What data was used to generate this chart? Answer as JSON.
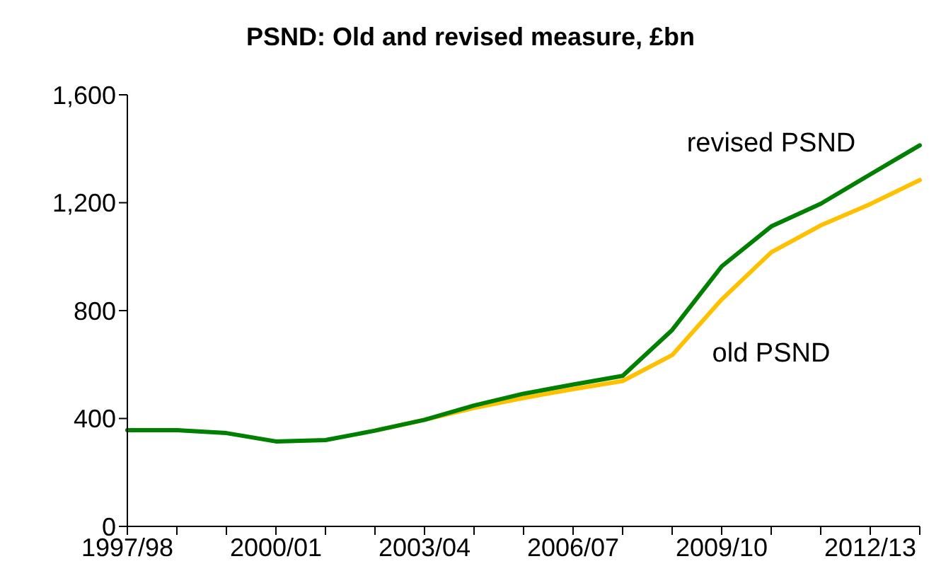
{
  "chart_data": {
    "type": "line",
    "title": "PSND: Old and revised measure, £bn",
    "categories": [
      "1997/98",
      null,
      null,
      "2000/01",
      null,
      null,
      "2003/04",
      null,
      null,
      "2006/07",
      null,
      null,
      "2009/10",
      null,
      null,
      "2012/13",
      null
    ],
    "series": [
      {
        "name": "revised PSND",
        "color": "#008000",
        "values": [
          357,
          357,
          346,
          315,
          320,
          355,
          395,
          448,
          492,
          526,
          558,
          728,
          964,
          1112,
          1196,
          1305,
          1413
        ]
      },
      {
        "name": "old PSND",
        "color": "#ffc000",
        "values": [
          null,
          null,
          null,
          null,
          null,
          355,
          395,
          439,
          476,
          509,
          539,
          635,
          841,
          1016,
          1116,
          1195,
          1284
        ]
      }
    ],
    "ylim": [
      0,
      1600
    ],
    "yticks": [
      0,
      {
        "value": 400,
        "label": "400"
      },
      {
        "value": 800,
        "label": "800"
      },
      {
        "value": 1200,
        "label": "1,200"
      },
      {
        "value": 1600,
        "label": "1,600"
      }
    ],
    "grid": false,
    "legend": false,
    "marker": "none",
    "line_style": "solid"
  }
}
